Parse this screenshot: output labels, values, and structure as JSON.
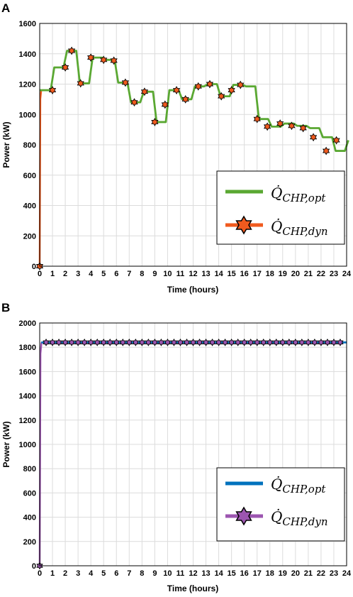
{
  "chart_data": [
    {
      "panel_label": "A",
      "type": "line",
      "xlabel": "Time (hours)",
      "ylabel": "Power (kW)",
      "xlim": [
        0,
        24
      ],
      "ylim": [
        0,
        1600
      ],
      "xticks": [
        "0",
        "1",
        "2",
        "3",
        "4",
        "5",
        "6",
        "7",
        "8",
        "9",
        "10",
        "11",
        "12",
        "13",
        "14",
        "15",
        "16",
        "17",
        "18",
        "19",
        "20",
        "21",
        "22",
        "23",
        "24"
      ],
      "yticks": [
        "0",
        "200",
        "400",
        "600",
        "800",
        "1000",
        "1200",
        "1400",
        "1600"
      ],
      "grid": true,
      "legend_position": "bottom-right",
      "hourly_x": [
        0,
        1,
        2,
        3,
        4,
        5,
        6,
        7,
        8,
        9,
        10,
        11,
        12,
        13,
        14,
        15,
        16,
        17,
        18,
        19,
        20,
        21,
        22,
        23,
        24
      ],
      "hourly_y": [
        1160,
        1310,
        1420,
        1205,
        1375,
        1360,
        1210,
        1080,
        1150,
        950,
        1160,
        1100,
        1185,
        1200,
        1120,
        1195,
        1185,
        970,
        920,
        940,
        925,
        910,
        850,
        760,
        830
      ],
      "series": [
        {
          "name_base": "Q̇",
          "name_sub": "CHP,opt",
          "color": "#5aa832",
          "style": "line"
        },
        {
          "name_base": "Q̇",
          "name_sub": "CHP,dyn",
          "color": "#f05a1e",
          "style": "line-hexagram",
          "marker_x": [
            0,
            1,
            2,
            2.5,
            3.2,
            4,
            5,
            5.8,
            6.7,
            7.4,
            8.2,
            9,
            9.8,
            10.7,
            11.4,
            12.4,
            13.3,
            14.2,
            15,
            15.7,
            17,
            17.8,
            18.8,
            19.7,
            20.6,
            21.4,
            22.4,
            23.2
          ],
          "marker_y": [
            0,
            1160,
            1310,
            1420,
            1205,
            1375,
            1360,
            1355,
            1210,
            1080,
            1150,
            950,
            1065,
            1160,
            1100,
            1185,
            1200,
            1120,
            1160,
            1195,
            970,
            920,
            940,
            925,
            910,
            850,
            760,
            830
          ]
        }
      ]
    },
    {
      "panel_label": "B",
      "type": "line",
      "xlabel": "Time (hours)",
      "ylabel": "Power (kW)",
      "xlim": [
        0,
        24
      ],
      "ylim": [
        0,
        2000
      ],
      "xticks": [
        "0",
        "1",
        "2",
        "3",
        "4",
        "5",
        "6",
        "7",
        "8",
        "9",
        "10",
        "11",
        "12",
        "13",
        "14",
        "15",
        "16",
        "17",
        "18",
        "19",
        "20",
        "21",
        "22",
        "23",
        "24"
      ],
      "yticks": [
        "0",
        "200",
        "400",
        "600",
        "800",
        "1000",
        "1200",
        "1400",
        "1600",
        "1800",
        "2000"
      ],
      "grid": true,
      "legend_position": "bottom-right",
      "constant_value": 1840,
      "series": [
        {
          "name_base": "Q̇",
          "name_sub": "CHP,opt",
          "color": "#0072bd",
          "style": "line"
        },
        {
          "name_base": "Q̇",
          "name_sub": "CHP,dyn",
          "color": "#9c55b0",
          "style": "line-hexagram",
          "marker_x": [
            0,
            0.5,
            1,
            1.5,
            2,
            2.5,
            3,
            3.5,
            4,
            4.5,
            5,
            5.5,
            6,
            6.5,
            7,
            7.5,
            8,
            8.5,
            9,
            9.5,
            10,
            10.5,
            11,
            11.5,
            12,
            12.5,
            13,
            13.5,
            14,
            14.5,
            15,
            15.5,
            16,
            16.5,
            17,
            17.5,
            18,
            18.5,
            19,
            19.5,
            20,
            20.5,
            21,
            21.5,
            22,
            22.5,
            23,
            23.5
          ],
          "marker_y": [
            0,
            1840,
            1840,
            1840,
            1840,
            1840,
            1840,
            1840,
            1840,
            1840,
            1840,
            1840,
            1840,
            1840,
            1840,
            1840,
            1840,
            1840,
            1840,
            1840,
            1840,
            1840,
            1840,
            1840,
            1840,
            1840,
            1840,
            1840,
            1840,
            1840,
            1840,
            1840,
            1840,
            1840,
            1840,
            1840,
            1840,
            1840,
            1840,
            1840,
            1840,
            1840,
            1840,
            1840,
            1840,
            1840,
            1840,
            1840
          ]
        }
      ]
    }
  ]
}
